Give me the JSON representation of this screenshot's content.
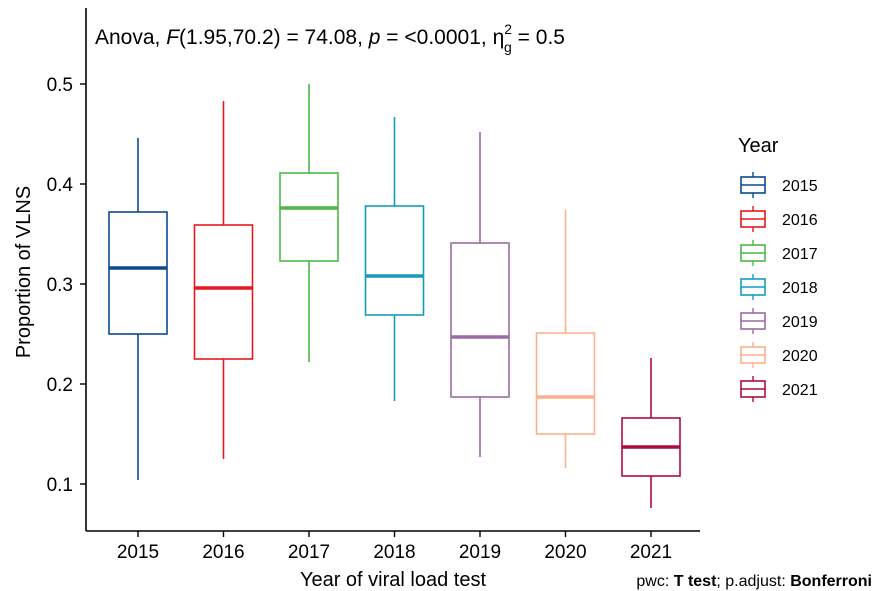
{
  "chart_data": {
    "type": "boxplot",
    "title_parts": {
      "prefix": "Anova, ",
      "f_symbol": "F",
      "f_args": "(1.95,70.2) = 74.08, ",
      "p_symbol": "p",
      "p_text": " = <0.0001, ",
      "eta": "η",
      "eta_sup": "2",
      "eta_sub": "g",
      "eta_value": " = 0.5"
    },
    "xlabel": "Year of viral load test",
    "ylabel": "Proportion of VLNS",
    "yticks": [
      "0.1",
      "0.2",
      "0.3",
      "0.4",
      "0.5"
    ],
    "ytick_values": [
      0.1,
      0.2,
      0.3,
      0.4,
      0.5
    ],
    "ylim": [
      0.05,
      0.56
    ],
    "categories": [
      "2015",
      "2016",
      "2017",
      "2018",
      "2019",
      "2020",
      "2021"
    ],
    "boxes": [
      {
        "category": "2015",
        "min": 0.104,
        "q1": 0.25,
        "median": 0.316,
        "q3": 0.372,
        "max": 0.446,
        "color": "#0c4a8c"
      },
      {
        "category": "2016",
        "min": 0.125,
        "q1": 0.225,
        "median": 0.296,
        "q3": 0.359,
        "max": 0.483,
        "color": "#e8181c"
      },
      {
        "category": "2017",
        "min": 0.222,
        "q1": 0.323,
        "median": 0.376,
        "q3": 0.411,
        "max": 0.5,
        "color": "#4cb848"
      },
      {
        "category": "2018",
        "min": 0.183,
        "q1": 0.269,
        "median": 0.308,
        "q3": 0.378,
        "max": 0.467,
        "color": "#159cbd"
      },
      {
        "category": "2019",
        "min": 0.127,
        "q1": 0.187,
        "median": 0.247,
        "q3": 0.341,
        "max": 0.452,
        "color": "#9c6aa5"
      },
      {
        "category": "2020",
        "min": 0.116,
        "q1": 0.15,
        "median": 0.187,
        "q3": 0.251,
        "max": 0.374,
        "color": "#fbb18e"
      },
      {
        "category": "2021",
        "min": 0.076,
        "q1": 0.108,
        "median": 0.137,
        "q3": 0.166,
        "max": 0.226,
        "color": "#b00b3b"
      }
    ],
    "legend": {
      "title": "Year",
      "placement": "right",
      "items": [
        {
          "label": "2015",
          "color": "#0c4a8c"
        },
        {
          "label": "2016",
          "color": "#e8181c"
        },
        {
          "label": "2017",
          "color": "#4cb848"
        },
        {
          "label": "2018",
          "color": "#159cbd"
        },
        {
          "label": "2019",
          "color": "#9c6aa5"
        },
        {
          "label": "2020",
          "color": "#fbb18e"
        },
        {
          "label": "2021",
          "color": "#b00b3b"
        }
      ]
    },
    "caption_parts": {
      "pwc_label": "pwc: ",
      "pwc_value": "T test",
      "adjust_label": "; p.adjust: ",
      "adjust_value": "Bonferroni"
    },
    "grid": false
  }
}
